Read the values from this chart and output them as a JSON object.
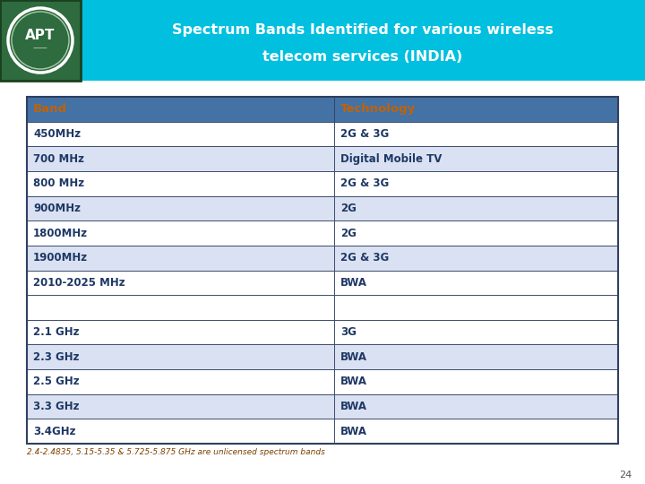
{
  "title_line1": "Spectrum Bands Identified for various wireless",
  "title_line2": "telecom services (INDIA)",
  "header": [
    "Band",
    "Technology"
  ],
  "rows": [
    [
      "450MHz",
      "2G & 3G"
    ],
    [
      "700 MHz",
      "Digital Mobile TV"
    ],
    [
      "800 MHz",
      "2G & 3G"
    ],
    [
      "900MHz",
      "2G"
    ],
    [
      "1800MHz",
      "2G"
    ],
    [
      "1900MHz",
      "2G & 3G"
    ],
    [
      "2010-2025 MHz",
      "BWA"
    ],
    [
      "",
      ""
    ],
    [
      "2.1 GHz",
      "3G"
    ],
    [
      "2.3 GHz",
      "BWA"
    ],
    [
      "2.5 GHz",
      "BWA"
    ],
    [
      "3.3 GHz",
      "BWA"
    ],
    [
      "3.4GHz",
      "BWA"
    ]
  ],
  "footnote": "2.4-2.4835, 5.15-5.35 & 5.725-5.875 GHz are unlicensed spectrum bands",
  "page_number": "24",
  "header_bg": "#4472A4",
  "header_text_color": "#C0620A",
  "odd_row_bg": "#D9E1F2",
  "even_row_bg": "#FFFFFF",
  "row_text_color": "#1F3864",
  "table_border_color": "#2F4060",
  "title_bg": "#00BFDF",
  "title_text_color": "#FFFFFF",
  "logo_bg": "#2E6B3E",
  "logo_border": "#1A4020",
  "footnote_color": "#7B3F00",
  "page_number_color": "#555555",
  "bg_color": "#FFFFFF"
}
